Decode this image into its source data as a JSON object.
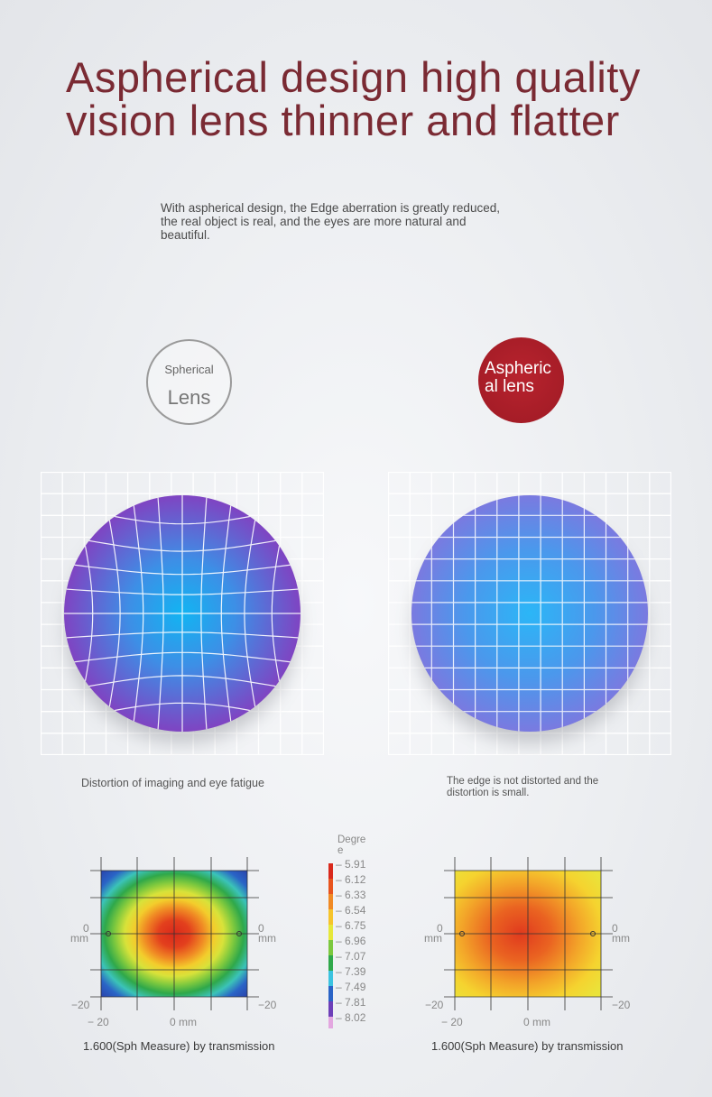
{
  "title": {
    "line1": "Aspherical design high quality",
    "line2": "vision lens thinner and flatter"
  },
  "description": {
    "line1": "With aspherical design, the Edge aberration is greatly reduced,",
    "line2": "the real object is real, and the eyes are more natural and",
    "line3": "beautiful."
  },
  "badges": {
    "spherical": {
      "small": "Spherical",
      "big": "Lens"
    },
    "aspherical": {
      "line1": "Aspheric",
      "line2": "al lens"
    }
  },
  "captions": {
    "spherical": "Distortion of imaging and eye fatigue",
    "aspherical_line1": "The edge is not distorted and the",
    "aspherical_line2": "distortion is small."
  },
  "maps": {
    "axis": {
      "y_top": "0",
      "y_unit": "mm",
      "y_bottom": "−20",
      "x_left": "− 20",
      "x_mid": "0 mm"
    },
    "left_label": "1.600(Sph Measure) by transmission",
    "right_label": "1.600(Sph Measure) by transmission"
  },
  "legend": {
    "title_line1": "Degre",
    "title_line2": "e",
    "entries": [
      {
        "label": "– 5.91",
        "color": "#d9291c"
      },
      {
        "label": "– 6.12",
        "color": "#e8541d"
      },
      {
        "label": "– 6.33",
        "color": "#f08a24"
      },
      {
        "label": "– 6.54",
        "color": "#f6c42b"
      },
      {
        "label": "– 6.75",
        "color": "#e6e83a"
      },
      {
        "label": "– 6.96",
        "color": "#7cc83e"
      },
      {
        "label": "– 7.07",
        "color": "#2fa84a"
      },
      {
        "label": "– 7.39",
        "color": "#3bc3e0"
      },
      {
        "label": "– 7.49",
        "color": "#2a64c6"
      },
      {
        "label": "– 7.81",
        "color": "#6d3fb8"
      },
      {
        "label": "– 8.02",
        "color": "#e3a7e0"
      }
    ]
  }
}
